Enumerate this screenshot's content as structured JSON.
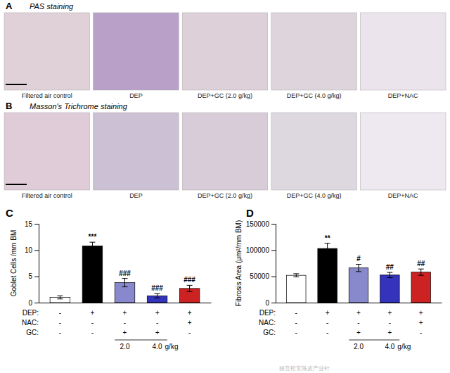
{
  "chart_data": [
    {
      "type": "bar",
      "title": "C",
      "categories": [
        null,
        null,
        null,
        null,
        null
      ],
      "values": [
        1.0,
        10.8,
        3.8,
        1.3,
        2.7
      ],
      "errors": [
        0.3,
        0.7,
        0.8,
        0.4,
        0.6
      ],
      "colors": [
        "white",
        "black",
        "#8888cc",
        "#3333bb",
        "#cc2222"
      ],
      "ylabel": "Goblet Cells /mm BM",
      "ylim": [
        0,
        15
      ],
      "yticks": [
        0,
        5,
        10,
        15
      ],
      "grid": false,
      "tick_labels": "y",
      "annotations": [
        null,
        "***",
        "###",
        "###",
        "###"
      ],
      "table": [
        {
          "label": "DEP:",
          "values": [
            "-",
            "+",
            "+",
            "+",
            "+"
          ]
        },
        {
          "label": "NAC:",
          "values": [
            "-",
            "-",
            "-",
            "-",
            "+"
          ]
        },
        {
          "label": "GC:",
          "values": [
            "-",
            "-",
            "+",
            "+",
            "-"
          ]
        }
      ],
      "dose_labels": [
        "2.0",
        "4.0"
      ],
      "dose_unit": "g/kg"
    },
    {
      "type": "bar",
      "title": "D",
      "categories": [
        null,
        null,
        null,
        null,
        null
      ],
      "values": [
        52000,
        103000,
        66000,
        52500,
        58000
      ],
      "errors": [
        3000,
        10000,
        7000,
        5000,
        6000
      ],
      "colors": [
        "white",
        "black",
        "#8888cc",
        "#3333bb",
        "#cc2222"
      ],
      "ylabel": "Fibrosis Area (μm²/mm BM)",
      "ylim": [
        0,
        150000
      ],
      "yticks": [
        0,
        50000,
        100000,
        150000
      ],
      "grid": false,
      "tick_labels": "y",
      "annotations": [
        null,
        "**",
        "#",
        "##",
        "##"
      ],
      "table": [
        {
          "label": "DEP:",
          "values": [
            "-",
            "+",
            "+",
            "+",
            "+"
          ]
        },
        {
          "label": "NAC:",
          "values": [
            "-",
            "-",
            "-",
            "-",
            "+"
          ]
        },
        {
          "label": "GC:",
          "values": [
            "-",
            "-",
            "+",
            "+",
            "-"
          ]
        }
      ],
      "dose_labels": [
        "2.0",
        "4.0"
      ],
      "dose_unit": "g/kg"
    }
  ],
  "image_panels": [
    {
      "label": "A",
      "title": "PAS staining",
      "image_labels": [
        "Filtered air control",
        "DEP",
        "DEP+GC (2.0 g/kg)",
        "DEP+GC (4.0 g/kg)",
        "DEP+NAC"
      ],
      "colors": [
        "#e0d0d8",
        "#b8a0c8",
        "#ddd0d8",
        "#ddd4dc",
        "#ece4ec"
      ]
    },
    {
      "label": "B",
      "title": "Masson's Trichrome staining",
      "image_labels": [
        "Filtered air control",
        "DEP",
        "DEP+GC (2.0 g/kg)",
        "DEP+GC (4.0 g/kg)",
        "DEP+NAC"
      ],
      "colors": [
        "#e0ccd8",
        "#ccc0d4",
        "#d8ccd8",
        "#ddd8e0",
        "#eee8f0"
      ]
    }
  ],
  "watermark": "丽宫橙宝陈皮产业针"
}
